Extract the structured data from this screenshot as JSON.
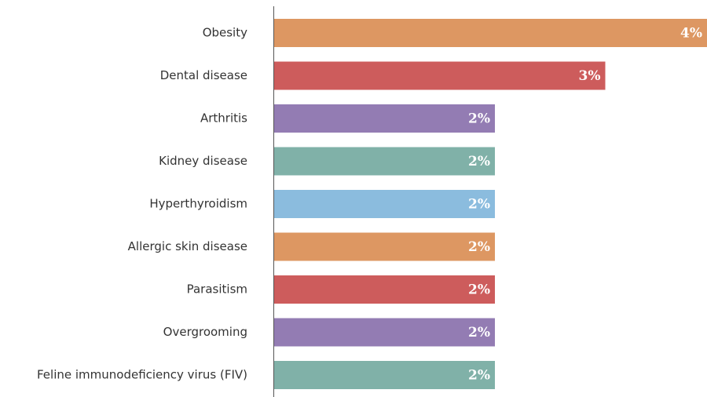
{
  "chart_data": {
    "type": "bar",
    "orientation": "horizontal",
    "categories": [
      "Obesity",
      "Dental disease",
      "Arthritis",
      "Kidney disease",
      "Hyperthyroidism",
      "Allergic skin disease",
      "Parasitism",
      "Overgrooming",
      "Feline immunodeficiency virus (FIV)"
    ],
    "values": [
      4,
      3.06,
      2.04,
      2.04,
      2.04,
      2.04,
      2.04,
      2.04,
      2.04
    ],
    "value_labels": [
      "4%",
      "3%",
      "2%",
      "2%",
      "2%",
      "2%",
      "2%",
      "2%",
      "2%"
    ],
    "colors": [
      "#dd9762",
      "#cd5c5c",
      "#937cb3",
      "#80b1a8",
      "#8bbcde",
      "#dd9762",
      "#cd5c5c",
      "#937cb3",
      "#80b1a8"
    ],
    "xlim": [
      0,
      4
    ]
  }
}
